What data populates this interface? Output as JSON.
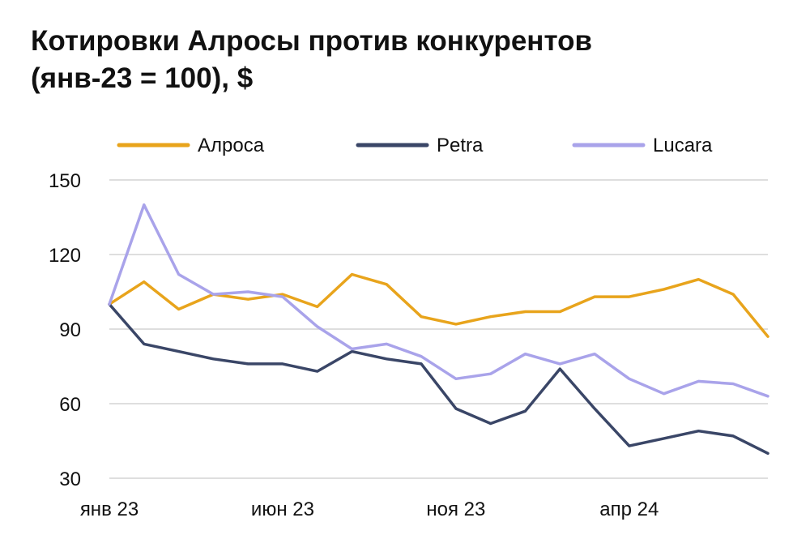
{
  "title": {
    "line1": "Котировки Алросы против конкурентов",
    "line2": "(янв-23 = 100), $"
  },
  "chart_data": {
    "type": "line",
    "title": "Котировки Алросы против конкурентов (янв-23 = 100), $",
    "xlabel": "",
    "ylabel": "",
    "ylim": [
      30,
      150
    ],
    "yticks": [
      150,
      120,
      90,
      60,
      30
    ],
    "xticks": [
      "янв 23",
      "июн 23",
      "ноя 23",
      "апр 24"
    ],
    "xlim": [
      "2023-01",
      "2024-08"
    ],
    "grid": true,
    "legend_position": "top",
    "x": [
      "2023-01",
      "2023-02",
      "2023-03",
      "2023-04",
      "2023-05",
      "2023-06",
      "2023-07",
      "2023-08",
      "2023-09",
      "2023-10",
      "2023-11",
      "2023-12",
      "2024-01",
      "2024-02",
      "2024-03",
      "2024-04",
      "2024-05",
      "2024-06",
      "2024-07",
      "2024-08"
    ],
    "series": [
      {
        "name": "Алроса",
        "color": "#E8A41C",
        "values": [
          100,
          109,
          98,
          104,
          102,
          104,
          99,
          112,
          108,
          95,
          92,
          95,
          97,
          97,
          103,
          103,
          106,
          110,
          104,
          87
        ]
      },
      {
        "name": "Petra",
        "color": "#3A4667",
        "values": [
          100,
          84,
          81,
          78,
          76,
          76,
          73,
          81,
          78,
          76,
          58,
          52,
          57,
          74,
          58,
          43,
          46,
          49,
          47,
          40
        ]
      },
      {
        "name": "Lucara",
        "color": "#A9A3EA",
        "values": [
          100,
          140,
          112,
          104,
          105,
          103,
          91,
          82,
          84,
          79,
          70,
          72,
          80,
          76,
          80,
          70,
          64,
          69,
          68,
          63
        ]
      }
    ]
  }
}
